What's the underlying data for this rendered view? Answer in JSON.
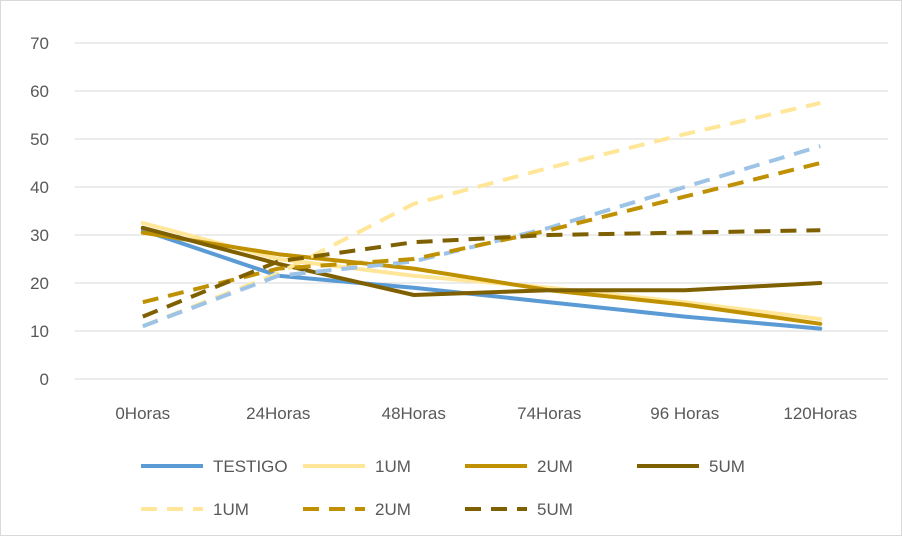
{
  "chart_data": {
    "type": "line",
    "categories": [
      "0Horas",
      "24Horas",
      "48Horas",
      "74Horas",
      "96 Horas",
      "120Horas"
    ],
    "ylim": [
      0,
      70
    ],
    "yticks": [
      0,
      10,
      20,
      30,
      40,
      50,
      60,
      70
    ],
    "grid": true,
    "legend_position": "bottom",
    "series": [
      {
        "name": "TESTIGO",
        "color": "#5b9bd5",
        "dash": false,
        "values": [
          31,
          21.5,
          19,
          16,
          13,
          10.5
        ]
      },
      {
        "name": "1UM",
        "color": "#ffe699",
        "dash": false,
        "values": [
          32.5,
          25,
          21.5,
          19,
          16,
          12.5
        ]
      },
      {
        "name": "2UM",
        "color": "#bf9000",
        "dash": false,
        "values": [
          30.5,
          26,
          23,
          18.5,
          15.5,
          11.5
        ]
      },
      {
        "name": "5UM",
        "color": "#7f6000",
        "dash": false,
        "values": [
          31.5,
          24,
          17.5,
          18.5,
          18.5,
          20
        ]
      },
      {
        "name": "1UM",
        "color": "#ffe699",
        "dash": true,
        "values": [
          11,
          22,
          36.5,
          44,
          51,
          57.5
        ]
      },
      {
        "name": "",
        "color": "#9dc3e6",
        "dash": true,
        "values": [
          11,
          21.5,
          24.5,
          31.5,
          40,
          48.5
        ]
      },
      {
        "name": "2UM",
        "color": "#bf9000",
        "dash": true,
        "values": [
          16,
          23,
          25,
          31,
          38,
          45
        ]
      },
      {
        "name": "5UM",
        "color": "#7f6000",
        "dash": true,
        "values": [
          13,
          24.5,
          28.5,
          30,
          30.5,
          31
        ]
      }
    ]
  }
}
